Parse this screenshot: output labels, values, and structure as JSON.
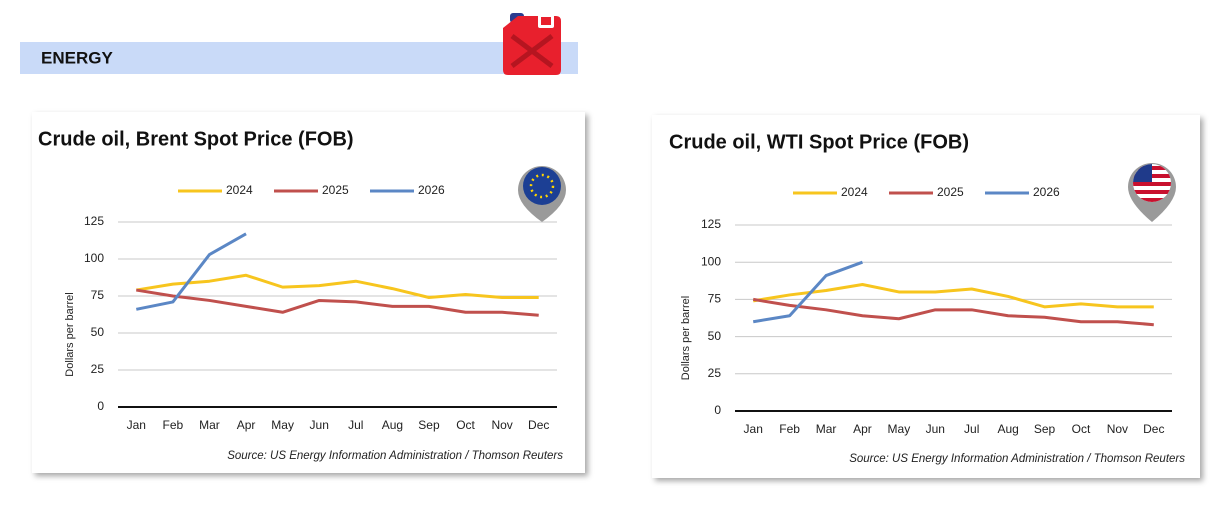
{
  "header": {
    "title": "ENERGY"
  },
  "chart_data": [
    {
      "type": "line",
      "title": "Crude oil, Brent Spot Price (FOB)",
      "ylabel": "Dollars per barrel",
      "source": "Source: US Energy Information Administration / Thomson Reuters",
      "categories": [
        "Jan",
        "Feb",
        "Mar",
        "Apr",
        "May",
        "Jun",
        "Jul",
        "Aug",
        "Sep",
        "Oct",
        "Nov",
        "Dec"
      ],
      "ylim": [
        0,
        125
      ],
      "yticks": [
        0,
        25,
        50,
        75,
        100,
        125
      ],
      "grid": true,
      "series": [
        {
          "name": "2024",
          "color": "#f7c51e",
          "values": [
            79,
            83,
            85,
            89,
            81,
            82,
            85,
            80,
            74,
            76,
            74,
            74
          ]
        },
        {
          "name": "2025",
          "color": "#c0504d",
          "values": [
            79,
            75,
            72,
            68,
            64,
            72,
            71,
            68,
            68,
            64,
            64,
            62
          ]
        },
        {
          "name": "2026",
          "color": "#5b87c5",
          "values": [
            66,
            71,
            103,
            117,
            null,
            null,
            null,
            null,
            null,
            null,
            null,
            null
          ]
        }
      ]
    },
    {
      "type": "line",
      "title": "Crude oil, WTI Spot Price (FOB)",
      "ylabel": "Dollars per barrel",
      "source": "Source: US Energy Information Administration / Thomson Reuters",
      "categories": [
        "Jan",
        "Feb",
        "Mar",
        "Apr",
        "May",
        "Jun",
        "Jul",
        "Aug",
        "Sep",
        "Oct",
        "Nov",
        "Dec"
      ],
      "ylim": [
        0,
        125
      ],
      "yticks": [
        0,
        25,
        50,
        75,
        100,
        125
      ],
      "grid": true,
      "series": [
        {
          "name": "2024",
          "color": "#f7c51e",
          "values": [
            74,
            78,
            81,
            85,
            80,
            80,
            82,
            77,
            70,
            72,
            70,
            70
          ]
        },
        {
          "name": "2025",
          "color": "#c0504d",
          "values": [
            75,
            71,
            68,
            64,
            62,
            68,
            68,
            64,
            63,
            60,
            60,
            58
          ]
        },
        {
          "name": "2026",
          "color": "#5b87c5",
          "values": [
            60,
            64,
            91,
            100,
            null,
            null,
            null,
            null,
            null,
            null,
            null,
            null
          ]
        }
      ]
    }
  ]
}
